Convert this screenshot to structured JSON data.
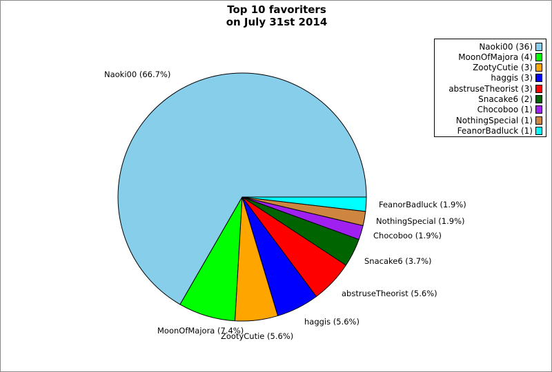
{
  "chart_data": {
    "type": "pie",
    "title_lines": [
      "Top 10 favoriters",
      "on July 31st 2014"
    ],
    "slices": [
      {
        "name": "Naoki00",
        "value": 36,
        "percent_label": "Naoki00 (66.7%)",
        "legend_label": "Naoki00 (36)",
        "color": "#87CEEB"
      },
      {
        "name": "MoonOfMajora",
        "value": 4,
        "percent_label": "MoonOfMajora (7.4%)",
        "legend_label": "MoonOfMajora (4)",
        "color": "#00FF00"
      },
      {
        "name": "ZootyCutie",
        "value": 3,
        "percent_label": "ZootyCutie (5.6%)",
        "legend_label": "ZootyCutie (3)",
        "color": "#FFA500"
      },
      {
        "name": "haggis",
        "value": 3,
        "percent_label": "haggis (5.6%)",
        "legend_label": "haggis (3)",
        "color": "#0000FF"
      },
      {
        "name": "abstruseTheorist",
        "value": 3,
        "percent_label": "abstruseTheorist (5.6%)",
        "legend_label": "abstruseTheorist (3)",
        "color": "#FF0000"
      },
      {
        "name": "Snacake6",
        "value": 2,
        "percent_label": "Snacake6 (3.7%)",
        "legend_label": "Snacake6 (2)",
        "color": "#006400"
      },
      {
        "name": "Chocoboo",
        "value": 1,
        "percent_label": "Chocoboo (1.9%)",
        "legend_label": "Chocoboo (1)",
        "color": "#A020F0"
      },
      {
        "name": "NothingSpecial",
        "value": 1,
        "percent_label": "NothingSpecial (1.9%)",
        "legend_label": "NothingSpecial (1)",
        "color": "#CD853F"
      },
      {
        "name": "FeanorBadluck",
        "value": 1,
        "percent_label": "FeanorBadluck (1.9%)",
        "legend_label": "FeanorBadluck (1)",
        "color": "#00FFFF"
      }
    ],
    "legend_placement": "top-right"
  }
}
